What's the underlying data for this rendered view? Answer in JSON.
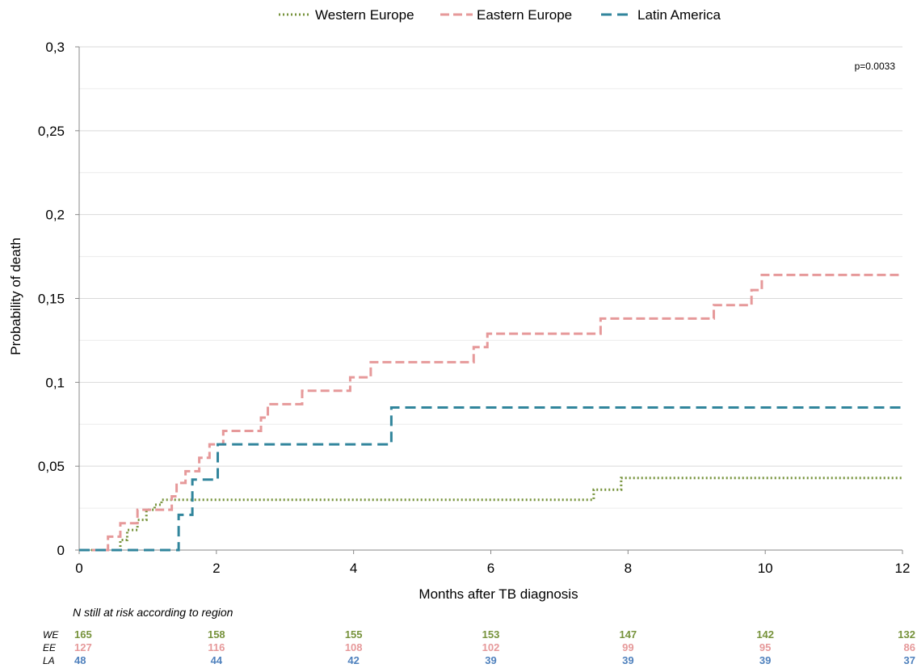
{
  "chart_data": {
    "type": "line",
    "step": true,
    "xlabel": "Months after TB diagnosis",
    "ylabel": "Probability of death",
    "xlim": [
      0,
      12
    ],
    "ylim": [
      0,
      0.3
    ],
    "x_ticks": [
      0,
      2,
      4,
      6,
      8,
      10,
      12
    ],
    "x_tick_labels": [
      "0",
      "2",
      "4",
      "6",
      "8",
      "10",
      "12"
    ],
    "y_ticks": [
      0,
      0.05,
      0.1,
      0.15,
      0.2,
      0.25,
      0.3
    ],
    "y_tick_labels": [
      "0",
      "0,05",
      "0,1",
      "0,15",
      "0,2",
      "0,25",
      "0,3"
    ],
    "grid": true,
    "legend_position": "top",
    "annotation": "p=0.0033",
    "series": [
      {
        "name": "Western Europe",
        "style": "dotted",
        "color": "#77933c",
        "x": [
          0,
          0.6,
          0.7,
          0.85,
          0.98,
          1.1,
          1.2,
          7.5,
          7.9,
          12
        ],
        "y": [
          0,
          0.006,
          0.012,
          0.018,
          0.024,
          0.027,
          0.03,
          0.036,
          0.043,
          0.043
        ]
      },
      {
        "name": "Eastern Europe",
        "style": "dashed",
        "color": "#e6999a",
        "x": [
          0,
          0.42,
          0.6,
          0.85,
          1.35,
          1.42,
          1.55,
          1.75,
          1.9,
          2.1,
          2.65,
          2.75,
          3.25,
          3.95,
          4.25,
          5.75,
          5.95,
          7.6,
          9.25,
          9.8,
          9.95,
          12
        ],
        "y": [
          0,
          0.008,
          0.016,
          0.024,
          0.032,
          0.04,
          0.047,
          0.055,
          0.063,
          0.071,
          0.079,
          0.087,
          0.095,
          0.103,
          0.112,
          0.121,
          0.129,
          0.138,
          0.146,
          0.155,
          0.164,
          0.164
        ]
      },
      {
        "name": "Latin America",
        "style": "dashed",
        "color": "#31859c",
        "x": [
          0,
          1.45,
          1.65,
          2.02,
          4.55,
          12
        ],
        "y": [
          0,
          0.021,
          0.042,
          0.063,
          0.085,
          0.085
        ]
      }
    ],
    "risk_table": {
      "title": "N still at risk according to region",
      "rows": [
        {
          "label": "WE",
          "color": "#77933c",
          "values": [
            "165",
            "158",
            "155",
            "153",
            "147",
            "142",
            "132"
          ]
        },
        {
          "label": "EE",
          "color": "#e6999a",
          "values": [
            "127",
            "116",
            "108",
            "102",
            "99",
            "95",
            "86"
          ]
        },
        {
          "label": "LA",
          "color": "#4f81bd",
          "values": [
            "48",
            "44",
            "42",
            "39",
            "39",
            "39",
            "37"
          ]
        }
      ]
    }
  }
}
